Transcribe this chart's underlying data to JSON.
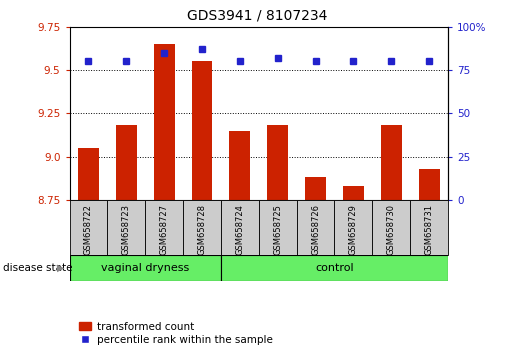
{
  "title": "GDS3941 / 8107234",
  "samples": [
    "GSM658722",
    "GSM658723",
    "GSM658727",
    "GSM658728",
    "GSM658724",
    "GSM658725",
    "GSM658726",
    "GSM658729",
    "GSM658730",
    "GSM658731"
  ],
  "transformed_count": [
    9.05,
    9.18,
    9.65,
    9.55,
    9.15,
    9.18,
    8.88,
    8.83,
    9.18,
    8.93
  ],
  "percentile_rank": [
    80,
    80,
    85,
    87,
    80,
    82,
    80,
    80,
    80,
    80
  ],
  "ylim_left": [
    8.75,
    9.75
  ],
  "ylim_right": [
    0,
    100
  ],
  "yticks_left": [
    8.75,
    9.0,
    9.25,
    9.5,
    9.75
  ],
  "yticks_right": [
    0,
    25,
    50,
    75,
    100
  ],
  "bar_color": "#cc2200",
  "dot_color": "#2222cc",
  "group1_label": "vaginal dryness",
  "group2_label": "control",
  "group1_count": 4,
  "group2_count": 6,
  "disease_state_label": "disease state",
  "legend_bar_label": "transformed count",
  "legend_dot_label": "percentile rank within the sample",
  "tick_label_color_left": "#cc2200",
  "tick_label_color_right": "#2222cc",
  "bar_width": 0.55,
  "group_bg_color": "#66ee66",
  "sample_bg_color": "#cccccc",
  "border_color": "#000000",
  "title_fontsize": 10,
  "axis_label_fontsize": 8,
  "sample_label_fontsize": 6,
  "group_label_fontsize": 8,
  "legend_fontsize": 7.5
}
